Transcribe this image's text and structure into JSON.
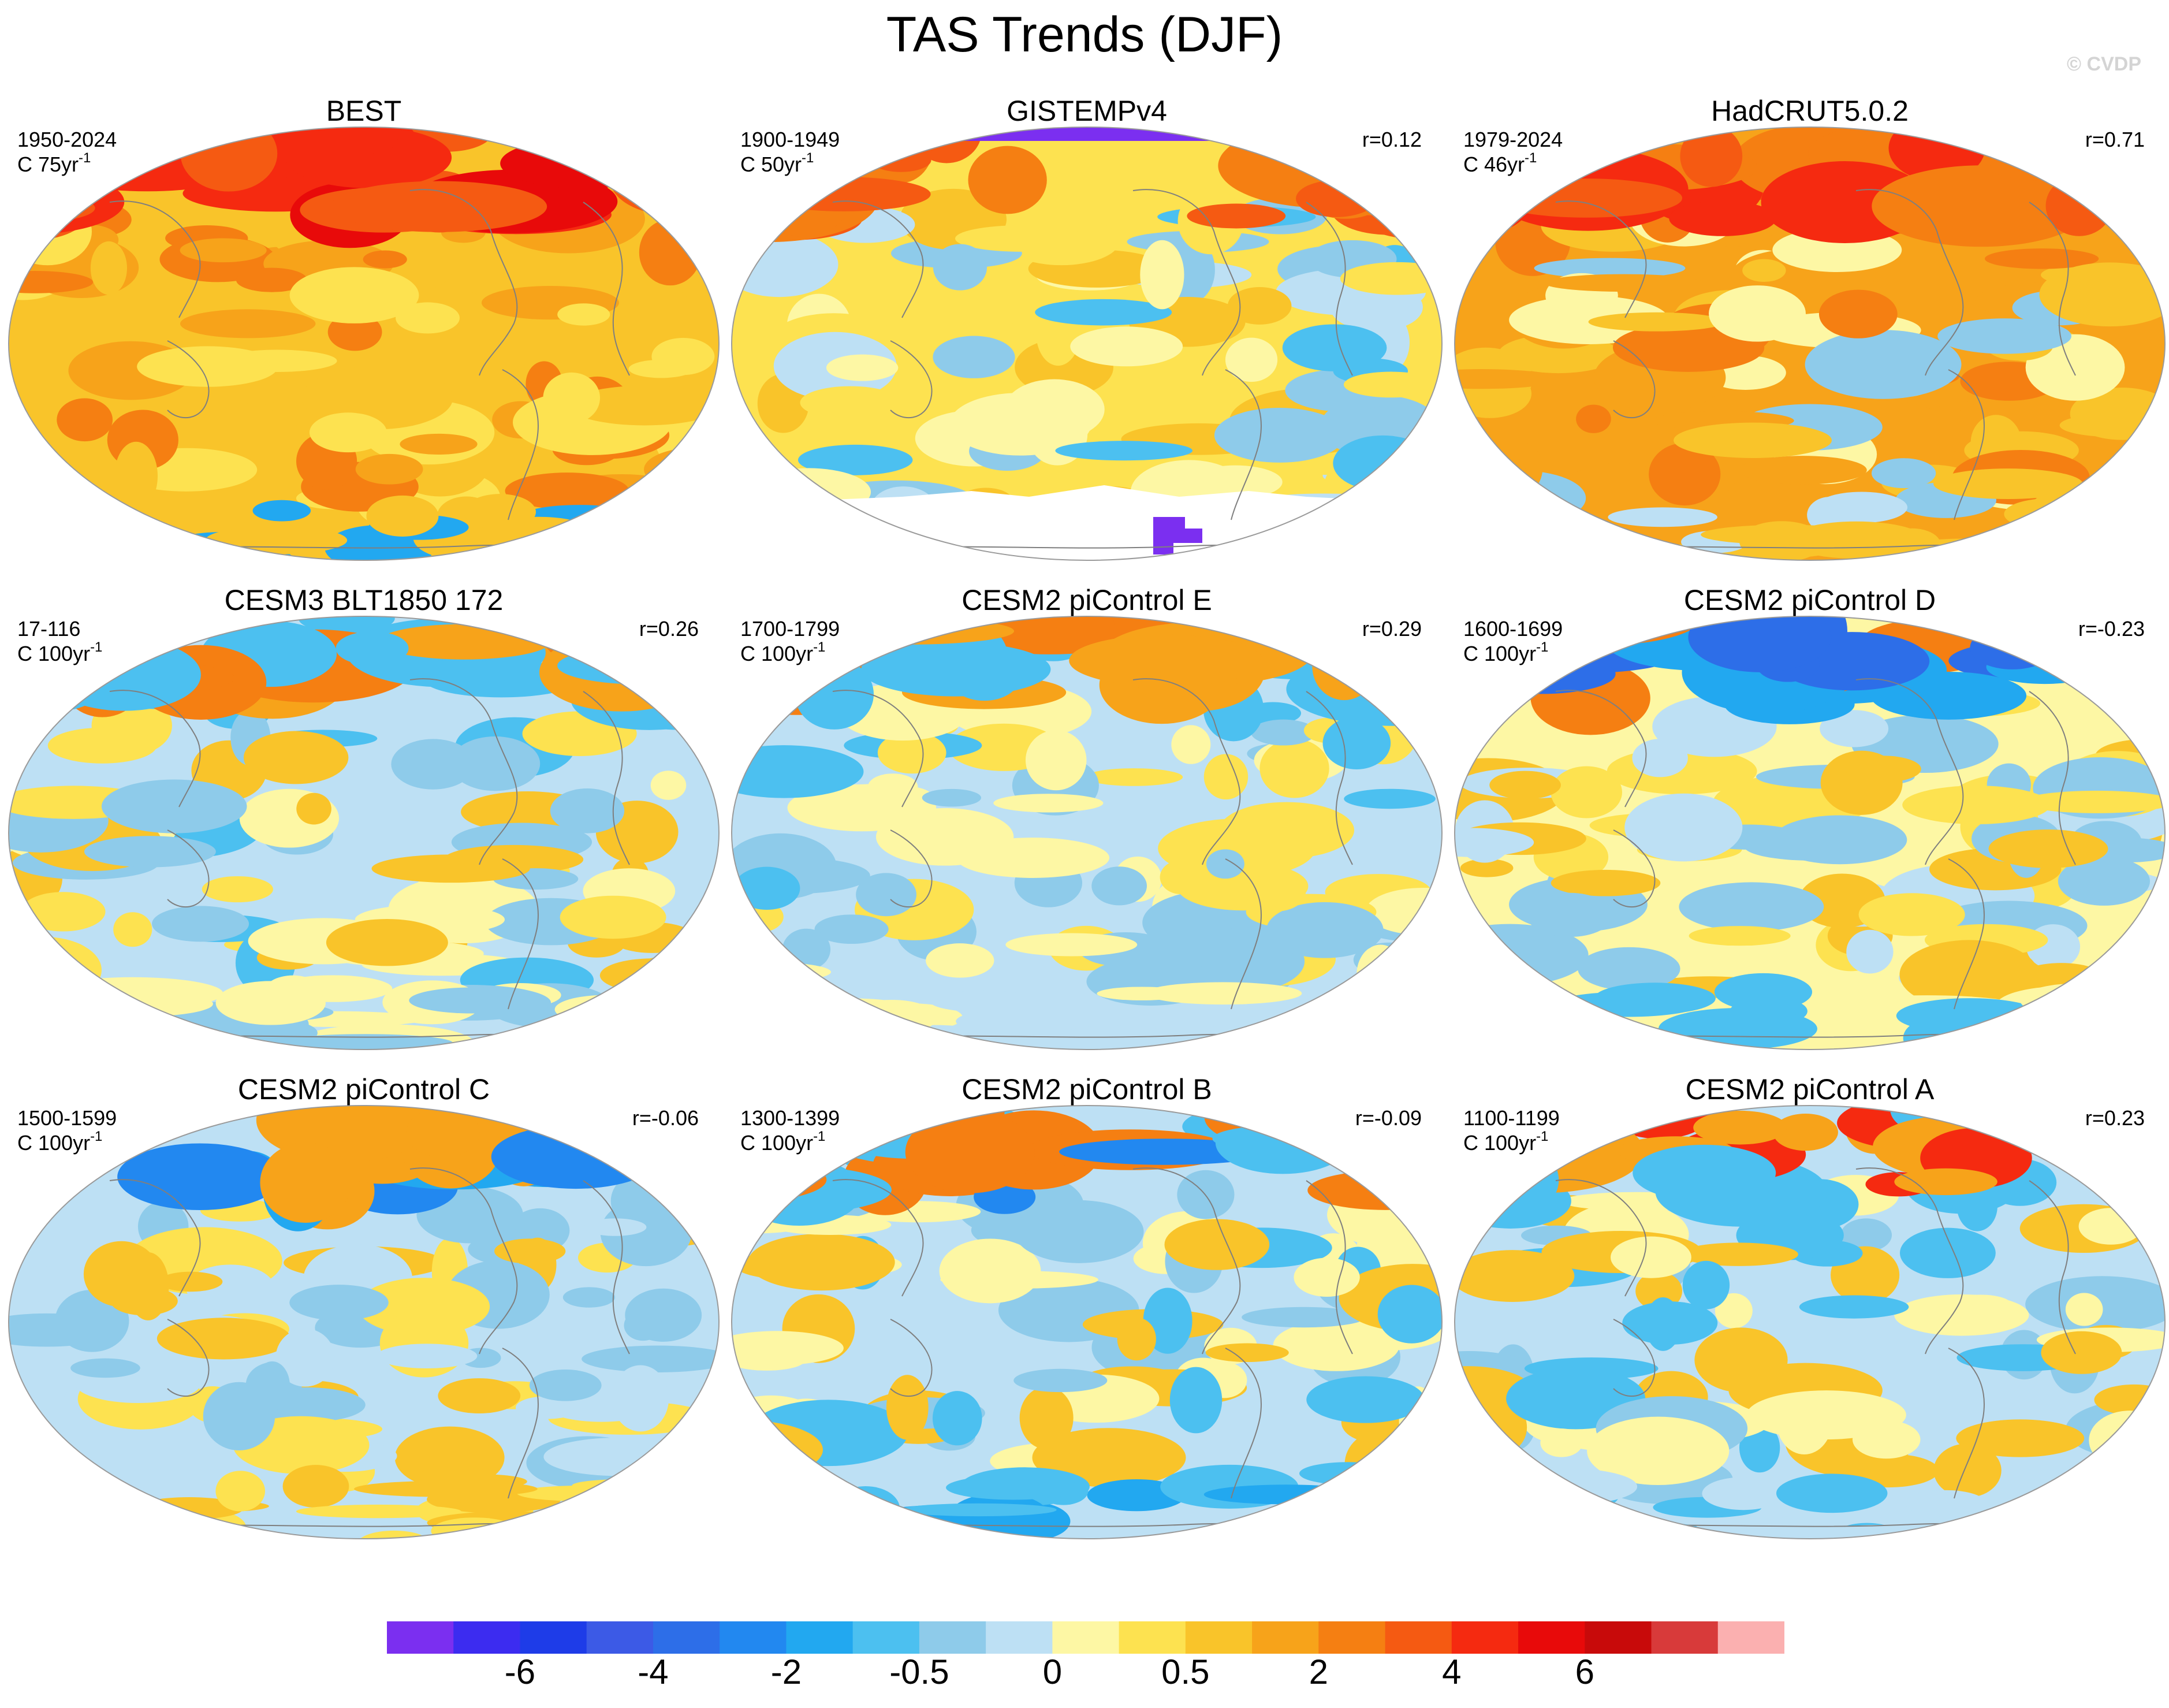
{
  "title": "TAS Trends (DJF)",
  "watermark": "© CVDP",
  "colors": {
    "neg6": "#7b2ff0",
    "neg5": "#3c2cf0",
    "neg4": "#1e3ce8",
    "neg3": "#3c5ae6",
    "neg2": "#2d6ee8",
    "neg15": "#2288f0",
    "neg1": "#22a8f0",
    "neg05": "#4cc0f0",
    "neg025": "#8ecbea",
    "neg01": "#bde0f4",
    "pos01": "#fdf7a4",
    "pos025": "#fde250",
    "pos05": "#f9c42a",
    "pos1": "#f7a31a",
    "pos15": "#f57f12",
    "pos2": "#f55a12",
    "pos3": "#f52a10",
    "pos4": "#e80a0a",
    "pos5": "#c80a0a",
    "pos6": "#d83a3a",
    "pos7": "#fbb0b0"
  },
  "panels": [
    {
      "title": "BEST",
      "period": "1950-2024",
      "units_prefix": "C 75yr",
      "units_exp": "-1",
      "corr": "",
      "base": "#f9c42a"
    },
    {
      "title": "GISTEMPv4",
      "period": "1900-1949",
      "units_prefix": "C 50yr",
      "units_exp": "-1",
      "corr": "r=0.12",
      "base": "#fde250"
    },
    {
      "title": "HadCRUT5.0.2",
      "period": "1979-2024",
      "units_prefix": "C 46yr",
      "units_exp": "-1",
      "corr": "r=0.71",
      "base": "#f7a31a"
    },
    {
      "title": "CESM3 BLT1850 172",
      "period": "17-116",
      "units_prefix": "C 100yr",
      "units_exp": "-1",
      "corr": "r=0.26",
      "base": "#bde0f4"
    },
    {
      "title": "CESM2 piControl E",
      "period": "1700-1799",
      "units_prefix": "C 100yr",
      "units_exp": "-1",
      "corr": "r=0.29",
      "base": "#bde0f4"
    },
    {
      "title": "CESM2 piControl D",
      "period": "1600-1699",
      "units_prefix": "C 100yr",
      "units_exp": "-1",
      "corr": "r=-0.23",
      "base": "#fdf7a4"
    },
    {
      "title": "CESM2 piControl C",
      "period": "1500-1599",
      "units_prefix": "C 100yr",
      "units_exp": "-1",
      "corr": "r=-0.06",
      "base": "#bde0f4"
    },
    {
      "title": "CESM2 piControl B",
      "period": "1300-1399",
      "units_prefix": "C 100yr",
      "units_exp": "-1",
      "corr": "r=-0.09",
      "base": "#bde0f4"
    },
    {
      "title": "CESM2 piControl A",
      "period": "1100-1199",
      "units_prefix": "C 100yr",
      "units_exp": "-1",
      "corr": "r=0.23",
      "base": "#bde0f4"
    }
  ],
  "colorbar": {
    "boxes": [
      "#7b2ff0",
      "#3c2cf0",
      "#1e3ce8",
      "#3c5ae6",
      "#2d6ee8",
      "#2288f0",
      "#22a8f0",
      "#4cc0f0",
      "#8ecbea",
      "#bde0f4",
      "#fdf7a4",
      "#fde250",
      "#f9c42a",
      "#f7a31a",
      "#f57f12",
      "#f55a12",
      "#f52a10",
      "#e80a0a",
      "#c80a0a",
      "#d83a3a",
      "#fbb0b0"
    ],
    "labels": [
      "-6",
      "-4",
      "-2",
      "-0.5",
      "0",
      "0.5",
      "2",
      "4",
      "6"
    ]
  }
}
